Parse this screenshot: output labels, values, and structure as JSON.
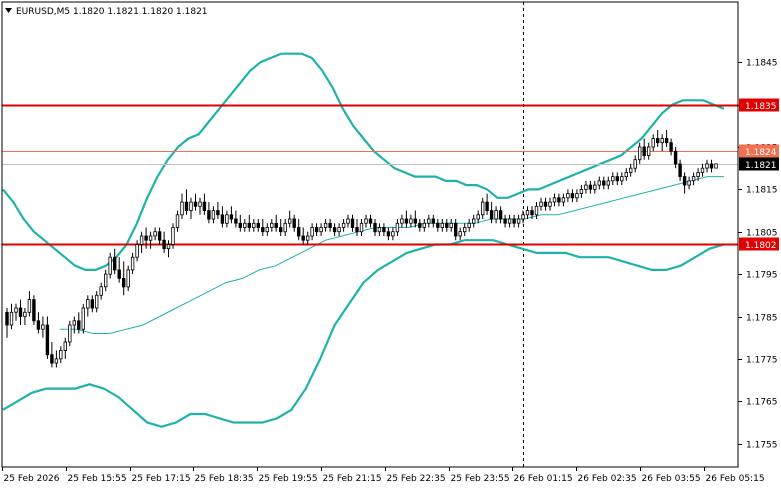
{
  "chart_title": "EURUSD,M5  1.1820 1.1821 1.1820 1.1821",
  "colors": {
    "background": "#ffffff",
    "frame": "#000000",
    "grid": "#c8c8c8",
    "candle": "#000000",
    "bollinger": "#20b2aa",
    "moving_average": "#20b2aa",
    "resistance_line": "#e00000",
    "pivot_line": "#f07050",
    "current_price_line": "#c0c0c0",
    "current_price_tag": "#000000",
    "red_tag": "#e00000",
    "orange_tag": "#f07050"
  },
  "chart_data": {
    "type": "candlestick",
    "symbol": "EURUSD",
    "timeframe": "M5",
    "ohlc_header": {
      "open": 1.182,
      "high": 1.1821,
      "low": 1.182,
      "close": 1.1821
    },
    "ylim": [
      1.17495,
      1.18592
    ],
    "y_ticks": [
      "1.1845",
      "1.1835",
      "1.1825",
      "1.1815",
      "1.1805",
      "1.1795",
      "1.1785",
      "1.1775",
      "1.1765",
      "1.1755"
    ],
    "y_tick_values": [
      1.1845,
      1.1835,
      1.1825,
      1.1815,
      1.1805,
      1.1795,
      1.1785,
      1.1775,
      1.1765,
      1.1755
    ],
    "x_ticks": [
      "25 Feb 2026",
      "25 Feb 15:55",
      "25 Feb 17:15",
      "25 Feb 18:35",
      "25 Feb 19:55",
      "25 Feb 21:15",
      "25 Feb 22:35",
      "25 Feb 23:55",
      "26 Feb 01:15",
      "26 Feb 02:35",
      "26 Feb 03:55",
      "26 Feb 05:15"
    ],
    "horizontal_levels": [
      {
        "label": "1.1835",
        "value": 1.1835,
        "role": "resistance"
      },
      {
        "label": "1.1824",
        "value": 1.1824,
        "role": "pivot"
      },
      {
        "label": "1.1802",
        "value": 1.1802,
        "role": "support"
      }
    ],
    "current_price": {
      "label": "1.1821",
      "value": 1.1821
    },
    "vertical_marker_bar": 115,
    "candles": [
      [
        1.1786,
        1.1787,
        1.178,
        1.1783
      ],
      [
        1.1783,
        1.1788,
        1.1782,
        1.1786
      ],
      [
        1.1786,
        1.1788,
        1.1784,
        1.1787
      ],
      [
        1.1787,
        1.1789,
        1.1783,
        1.1785
      ],
      [
        1.1785,
        1.1787,
        1.1783,
        1.1786
      ],
      [
        1.1786,
        1.1791,
        1.1785,
        1.1789
      ],
      [
        1.1789,
        1.179,
        1.1783,
        1.1784
      ],
      [
        1.1784,
        1.1786,
        1.1781,
        1.1782
      ],
      [
        1.1782,
        1.1785,
        1.178,
        1.1783
      ],
      [
        1.1783,
        1.1785,
        1.1775,
        1.1776
      ],
      [
        1.1776,
        1.1779,
        1.1773,
        1.1774
      ],
      [
        1.1774,
        1.1777,
        1.1773,
        1.1775
      ],
      [
        1.1775,
        1.1778,
        1.1774,
        1.1777
      ],
      [
        1.1777,
        1.178,
        1.1775,
        1.1779
      ],
      [
        1.1779,
        1.1784,
        1.1778,
        1.1783
      ],
      [
        1.1783,
        1.1785,
        1.1781,
        1.1784
      ],
      [
        1.1784,
        1.1786,
        1.1781,
        1.1782
      ],
      [
        1.1782,
        1.1788,
        1.1781,
        1.1787
      ],
      [
        1.1787,
        1.179,
        1.1785,
        1.1789
      ],
      [
        1.1789,
        1.179,
        1.1786,
        1.1787
      ],
      [
        1.1787,
        1.1791,
        1.1786,
        1.179
      ],
      [
        1.179,
        1.1793,
        1.1789,
        1.1792
      ],
      [
        1.1792,
        1.1796,
        1.1791,
        1.1795
      ],
      [
        1.1795,
        1.18,
        1.1794,
        1.1799
      ],
      [
        1.1799,
        1.1801,
        1.1795,
        1.1796
      ],
      [
        1.1796,
        1.1799,
        1.1793,
        1.1794
      ],
      [
        1.1794,
        1.1798,
        1.179,
        1.1792
      ],
      [
        1.1792,
        1.1797,
        1.1791,
        1.1796
      ],
      [
        1.1796,
        1.18,
        1.1795,
        1.1799
      ],
      [
        1.1799,
        1.1803,
        1.1798,
        1.1802
      ],
      [
        1.1802,
        1.1805,
        1.18,
        1.1804
      ],
      [
        1.1804,
        1.1806,
        1.1801,
        1.1803
      ],
      [
        1.1803,
        1.1805,
        1.1801,
        1.1804
      ],
      [
        1.1804,
        1.1806,
        1.1803,
        1.1805
      ],
      [
        1.1805,
        1.1806,
        1.1802,
        1.1803
      ],
      [
        1.1803,
        1.1805,
        1.18,
        1.1801
      ],
      [
        1.1801,
        1.1803,
        1.1799,
        1.1802
      ],
      [
        1.1802,
        1.1807,
        1.1801,
        1.1806
      ],
      [
        1.1806,
        1.181,
        1.1805,
        1.1809
      ],
      [
        1.1809,
        1.1814,
        1.1808,
        1.1812
      ],
      [
        1.1812,
        1.1815,
        1.1809,
        1.181
      ],
      [
        1.181,
        1.1813,
        1.1808,
        1.1812
      ],
      [
        1.1812,
        1.1814,
        1.181,
        1.1811
      ],
      [
        1.1811,
        1.1813,
        1.1809,
        1.1812
      ],
      [
        1.1812,
        1.1814,
        1.1809,
        1.181
      ],
      [
        1.181,
        1.1812,
        1.1807,
        1.1808
      ],
      [
        1.1808,
        1.1811,
        1.1807,
        1.181
      ],
      [
        1.181,
        1.1812,
        1.1808,
        1.1809
      ],
      [
        1.1809,
        1.1811,
        1.1806,
        1.1807
      ],
      [
        1.1807,
        1.181,
        1.1806,
        1.1809
      ],
      [
        1.1809,
        1.1811,
        1.1807,
        1.1808
      ],
      [
        1.1808,
        1.181,
        1.1806,
        1.1807
      ],
      [
        1.1807,
        1.1809,
        1.1805,
        1.1806
      ],
      [
        1.1806,
        1.1808,
        1.1805,
        1.1807
      ],
      [
        1.1807,
        1.1809,
        1.1805,
        1.1806
      ],
      [
        1.1806,
        1.1808,
        1.1805,
        1.1807
      ],
      [
        1.1807,
        1.1808,
        1.1805,
        1.1806
      ],
      [
        1.1806,
        1.1808,
        1.1804,
        1.1805
      ],
      [
        1.1805,
        1.1807,
        1.1804,
        1.1806
      ],
      [
        1.1806,
        1.1808,
        1.1805,
        1.1807
      ],
      [
        1.1807,
        1.1809,
        1.1805,
        1.1806
      ],
      [
        1.1806,
        1.1808,
        1.1804,
        1.1805
      ],
      [
        1.1805,
        1.1808,
        1.1804,
        1.1807
      ],
      [
        1.1807,
        1.181,
        1.1806,
        1.1808
      ],
      [
        1.1808,
        1.1809,
        1.1805,
        1.1806
      ],
      [
        1.1806,
        1.1808,
        1.1803,
        1.1804
      ],
      [
        1.1804,
        1.1806,
        1.1802,
        1.1803
      ],
      [
        1.1803,
        1.1805,
        1.1802,
        1.1804
      ],
      [
        1.1804,
        1.1807,
        1.1803,
        1.1806
      ],
      [
        1.1806,
        1.1807,
        1.1804,
        1.1805
      ],
      [
        1.1805,
        1.1807,
        1.1804,
        1.1806
      ],
      [
        1.1806,
        1.1808,
        1.1805,
        1.1807
      ],
      [
        1.1807,
        1.1808,
        1.1805,
        1.1806
      ],
      [
        1.1806,
        1.1807,
        1.1804,
        1.1805
      ],
      [
        1.1805,
        1.1807,
        1.1804,
        1.1806
      ],
      [
        1.1806,
        1.1808,
        1.1805,
        1.1807
      ],
      [
        1.1807,
        1.1809,
        1.1806,
        1.1808
      ],
      [
        1.1808,
        1.1809,
        1.1805,
        1.1806
      ],
      [
        1.1806,
        1.1808,
        1.1804,
        1.1805
      ],
      [
        1.1805,
        1.1808,
        1.1804,
        1.1807
      ],
      [
        1.1807,
        1.1809,
        1.1806,
        1.1808
      ],
      [
        1.1808,
        1.1809,
        1.1806,
        1.1807
      ],
      [
        1.1807,
        1.1808,
        1.1804,
        1.1805
      ],
      [
        1.1805,
        1.1807,
        1.1804,
        1.1806
      ],
      [
        1.1806,
        1.1807,
        1.1804,
        1.1805
      ],
      [
        1.1805,
        1.1806,
        1.1803,
        1.1804
      ],
      [
        1.1804,
        1.1806,
        1.1803,
        1.1805
      ],
      [
        1.1805,
        1.1808,
        1.1804,
        1.1807
      ],
      [
        1.1807,
        1.1809,
        1.1806,
        1.1808
      ],
      [
        1.1808,
        1.181,
        1.1806,
        1.1807
      ],
      [
        1.1807,
        1.1809,
        1.1806,
        1.1808
      ],
      [
        1.1808,
        1.181,
        1.1806,
        1.1807
      ],
      [
        1.1807,
        1.1808,
        1.1805,
        1.1806
      ],
      [
        1.1806,
        1.1808,
        1.1805,
        1.1807
      ],
      [
        1.1807,
        1.1809,
        1.1806,
        1.1808
      ],
      [
        1.1808,
        1.1809,
        1.1806,
        1.1807
      ],
      [
        1.1807,
        1.1808,
        1.1805,
        1.1806
      ],
      [
        1.1806,
        1.1808,
        1.1805,
        1.1807
      ],
      [
        1.1807,
        1.1808,
        1.1805,
        1.1806
      ],
      [
        1.1806,
        1.1808,
        1.1805,
        1.1807
      ],
      [
        1.1807,
        1.1808,
        1.1803,
        1.1804
      ],
      [
        1.1804,
        1.1806,
        1.1803,
        1.1805
      ],
      [
        1.1805,
        1.1807,
        1.1804,
        1.1806
      ],
      [
        1.1806,
        1.1808,
        1.1805,
        1.1807
      ],
      [
        1.1807,
        1.1809,
        1.1806,
        1.1808
      ],
      [
        1.1808,
        1.181,
        1.1807,
        1.1809
      ],
      [
        1.1809,
        1.1813,
        1.1808,
        1.1812
      ],
      [
        1.1812,
        1.1814,
        1.1809,
        1.181
      ],
      [
        1.181,
        1.1812,
        1.1807,
        1.1808
      ],
      [
        1.1808,
        1.1811,
        1.1807,
        1.181
      ],
      [
        1.181,
        1.1811,
        1.1807,
        1.1808
      ],
      [
        1.1808,
        1.1809,
        1.1806,
        1.1807
      ],
      [
        1.1807,
        1.1809,
        1.1806,
        1.1808
      ],
      [
        1.1808,
        1.1809,
        1.1806,
        1.1807
      ],
      [
        1.1807,
        1.1809,
        1.1806,
        1.1808
      ],
      [
        1.1808,
        1.181,
        1.1807,
        1.1809
      ],
      [
        1.1809,
        1.1811,
        1.1808,
        1.181
      ],
      [
        1.181,
        1.1811,
        1.1808,
        1.1809
      ],
      [
        1.1809,
        1.1812,
        1.1808,
        1.1811
      ],
      [
        1.1811,
        1.1813,
        1.181,
        1.1812
      ],
      [
        1.1812,
        1.1813,
        1.181,
        1.1811
      ],
      [
        1.1811,
        1.1813,
        1.181,
        1.1812
      ],
      [
        1.1812,
        1.1814,
        1.1811,
        1.1813
      ],
      [
        1.1813,
        1.1814,
        1.1811,
        1.1812
      ],
      [
        1.1812,
        1.1814,
        1.1811,
        1.1813
      ],
      [
        1.1813,
        1.1815,
        1.1812,
        1.1814
      ],
      [
        1.1814,
        1.1815,
        1.1812,
        1.1813
      ],
      [
        1.1813,
        1.1815,
        1.1812,
        1.1814
      ],
      [
        1.1814,
        1.1816,
        1.1813,
        1.1815
      ],
      [
        1.1815,
        1.1817,
        1.1814,
        1.1816
      ],
      [
        1.1816,
        1.1817,
        1.1814,
        1.1815
      ],
      [
        1.1815,
        1.1817,
        1.1814,
        1.1816
      ],
      [
        1.1816,
        1.1818,
        1.1815,
        1.1817
      ],
      [
        1.1817,
        1.1818,
        1.1815,
        1.1816
      ],
      [
        1.1816,
        1.1818,
        1.1815,
        1.1817
      ],
      [
        1.1817,
        1.1819,
        1.1816,
        1.1818
      ],
      [
        1.1818,
        1.1819,
        1.1816,
        1.1817
      ],
      [
        1.1817,
        1.1819,
        1.1816,
        1.1818
      ],
      [
        1.1818,
        1.182,
        1.1817,
        1.1819
      ],
      [
        1.1819,
        1.1821,
        1.1818,
        1.182
      ],
      [
        1.182,
        1.1823,
        1.1819,
        1.1822
      ],
      [
        1.1822,
        1.1826,
        1.1821,
        1.1825
      ],
      [
        1.1825,
        1.1827,
        1.1822,
        1.1823
      ],
      [
        1.1823,
        1.1826,
        1.1822,
        1.1825
      ],
      [
        1.1825,
        1.1828,
        1.1824,
        1.1827
      ],
      [
        1.1827,
        1.1829,
        1.1825,
        1.1826
      ],
      [
        1.1826,
        1.1828,
        1.1824,
        1.1827
      ],
      [
        1.1827,
        1.1829,
        1.1825,
        1.1826
      ],
      [
        1.1826,
        1.1827,
        1.1823,
        1.1824
      ],
      [
        1.1824,
        1.1825,
        1.182,
        1.1821
      ],
      [
        1.1821,
        1.1822,
        1.1817,
        1.1818
      ],
      [
        1.1818,
        1.1819,
        1.1814,
        1.1816
      ],
      [
        1.1816,
        1.1818,
        1.1815,
        1.1817
      ],
      [
        1.1817,
        1.1819,
        1.1816,
        1.1818
      ],
      [
        1.1818,
        1.182,
        1.1817,
        1.1819
      ],
      [
        1.1819,
        1.1821,
        1.1818,
        1.182
      ],
      [
        1.182,
        1.1822,
        1.1819,
        1.1821
      ],
      [
        1.1821,
        1.1822,
        1.1819,
        1.182
      ],
      [
        1.182,
        1.1821,
        1.182,
        1.1821
      ]
    ],
    "bollinger_upper": [
      1.1815,
      1.1812,
      1.1808,
      1.1805,
      1.1803,
      1.1801,
      1.1799,
      1.1797,
      1.1796,
      1.1796,
      1.1797,
      1.1799,
      1.1802,
      1.1807,
      1.1813,
      1.1818,
      1.1822,
      1.1825,
      1.1827,
      1.1828,
      1.1831,
      1.1834,
      1.1837,
      1.184,
      1.1843,
      1.1845,
      1.1846,
      1.1847,
      1.1847,
      1.1847,
      1.1846,
      1.1843,
      1.1839,
      1.1834,
      1.183,
      1.1827,
      1.1824,
      1.1822,
      1.182,
      1.1819,
      1.1818,
      1.1818,
      1.1818,
      1.1817,
      1.1817,
      1.1816,
      1.1816,
      1.1815,
      1.1813,
      1.1813,
      1.1814,
      1.1815,
      1.1815,
      1.1816,
      1.1817,
      1.1818,
      1.1819,
      1.182,
      1.1821,
      1.1822,
      1.1823,
      1.1825,
      1.1827,
      1.183,
      1.1833,
      1.1835,
      1.1836,
      1.1836,
      1.1836,
      1.1835,
      1.1834
    ],
    "bollinger_lower": [
      1.1763,
      1.1765,
      1.1767,
      1.1768,
      1.1768,
      1.1768,
      1.1769,
      1.1768,
      1.1766,
      1.1763,
      1.176,
      1.1759,
      1.176,
      1.1762,
      1.1762,
      1.1761,
      1.176,
      1.176,
      1.176,
      1.1761,
      1.1763,
      1.1768,
      1.1775,
      1.1783,
      1.1788,
      1.1793,
      1.1796,
      1.1798,
      1.18,
      1.1801,
      1.1802,
      1.1802,
      1.1803,
      1.1803,
      1.1803,
      1.1802,
      1.1801,
      1.18,
      1.18,
      1.18,
      1.1799,
      1.1799,
      1.1799,
      1.1798,
      1.1797,
      1.1796,
      1.1796,
      1.1797,
      1.1799,
      1.1801,
      1.1802
    ],
    "moving_average": [
      1.1782,
      1.1782,
      1.1781,
      1.1781,
      1.1782,
      1.1783,
      1.1785,
      1.1787,
      1.1789,
      1.1791,
      1.1793,
      1.1794,
      1.1796,
      1.1797,
      1.1799,
      1.1801,
      1.1803,
      1.1804,
      1.1805,
      1.1806,
      1.1806,
      1.1806,
      1.1807,
      1.1807,
      1.1807,
      1.1807,
      1.1808,
      1.1808,
      1.1808,
      1.1809,
      1.1809,
      1.181,
      1.1811,
      1.1812,
      1.1813,
      1.1814,
      1.1815,
      1.1816,
      1.1817,
      1.1818,
      1.1818
    ]
  }
}
